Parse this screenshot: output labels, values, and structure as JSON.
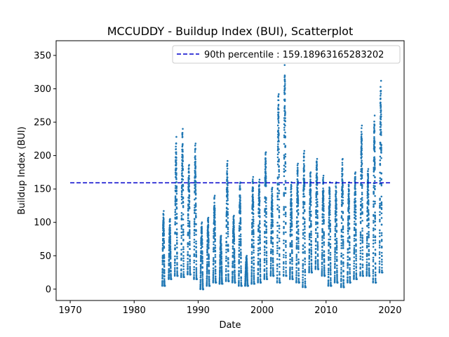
{
  "chart_data": {
    "type": "scatter",
    "title": "MCCUDDY - Buildup Index (BUI), Scatterplot",
    "xlabel": "Date",
    "ylabel": "Buildup Index (BUI)",
    "xlim": [
      1967.8,
      2022.2
    ],
    "ylim": [
      -17,
      372
    ],
    "xticks": [
      1970,
      1980,
      1990,
      2000,
      2010,
      2020
    ],
    "yticks": [
      0,
      50,
      100,
      150,
      200,
      250,
      300,
      350
    ],
    "series": [
      {
        "name": "",
        "color": "#1f77b4",
        "marker": "dot",
        "seasons": [
          {
            "year": 1984,
            "start": 1984.4,
            "end": 1984.8,
            "min": 5,
            "max": 117
          },
          {
            "year": 1985,
            "start": 1985.4,
            "end": 1985.8,
            "min": 15,
            "max": 105
          },
          {
            "year": 1986,
            "start": 1986.35,
            "end": 1986.8,
            "min": 20,
            "max": 228
          },
          {
            "year": 1987,
            "start": 1987.35,
            "end": 1987.8,
            "min": 18,
            "max": 240
          },
          {
            "year": 1988,
            "start": 1988.35,
            "end": 1988.8,
            "min": 22,
            "max": 186
          },
          {
            "year": 1989,
            "start": 1989.35,
            "end": 1989.8,
            "min": 15,
            "max": 218
          },
          {
            "year": 1990,
            "start": 1990.35,
            "end": 1990.8,
            "min": 0,
            "max": 100
          },
          {
            "year": 1991,
            "start": 1991.35,
            "end": 1991.8,
            "min": 5,
            "max": 107
          },
          {
            "year": 1992,
            "start": 1992.35,
            "end": 1992.8,
            "min": 10,
            "max": 140
          },
          {
            "year": 1993,
            "start": 1993.35,
            "end": 1993.8,
            "min": 8,
            "max": 80
          },
          {
            "year": 1994,
            "start": 1994.35,
            "end": 1994.8,
            "min": 12,
            "max": 192
          },
          {
            "year": 1995,
            "start": 1995.35,
            "end": 1995.8,
            "min": 10,
            "max": 110
          },
          {
            "year": 1996,
            "start": 1996.35,
            "end": 1996.8,
            "min": 5,
            "max": 160
          },
          {
            "year": 1997,
            "start": 1997.35,
            "end": 1997.8,
            "min": 5,
            "max": 50
          },
          {
            "year": 1998,
            "start": 1998.35,
            "end": 1998.8,
            "min": 8,
            "max": 168
          },
          {
            "year": 1999,
            "start": 1999.35,
            "end": 1999.8,
            "min": 10,
            "max": 164
          },
          {
            "year": 2000,
            "start": 2000.35,
            "end": 2000.8,
            "min": 15,
            "max": 205
          },
          {
            "year": 2001,
            "start": 2001.35,
            "end": 2001.8,
            "min": 20,
            "max": 152
          },
          {
            "year": 2002,
            "start": 2002.35,
            "end": 2002.8,
            "min": 10,
            "max": 292
          },
          {
            "year": 2003,
            "start": 2003.35,
            "end": 2003.8,
            "min": 20,
            "max": 340
          },
          {
            "year": 2004,
            "start": 2004.35,
            "end": 2004.8,
            "min": 15,
            "max": 160
          },
          {
            "year": 2005,
            "start": 2005.35,
            "end": 2005.8,
            "min": 10,
            "max": 188
          },
          {
            "year": 2006,
            "start": 2006.35,
            "end": 2006.8,
            "min": 3,
            "max": 207
          },
          {
            "year": 2007,
            "start": 2007.35,
            "end": 2007.8,
            "min": 25,
            "max": 175
          },
          {
            "year": 2008,
            "start": 2008.35,
            "end": 2008.8,
            "min": 30,
            "max": 195
          },
          {
            "year": 2009,
            "start": 2009.35,
            "end": 2009.8,
            "min": 20,
            "max": 170
          },
          {
            "year": 2010,
            "start": 2010.35,
            "end": 2010.8,
            "min": 5,
            "max": 160
          },
          {
            "year": 2011,
            "start": 2011.35,
            "end": 2011.8,
            "min": 10,
            "max": 160
          },
          {
            "year": 2012,
            "start": 2012.35,
            "end": 2012.8,
            "min": 3,
            "max": 195
          },
          {
            "year": 2013,
            "start": 2013.35,
            "end": 2013.8,
            "min": 10,
            "max": 160
          },
          {
            "year": 2014,
            "start": 2014.35,
            "end": 2014.8,
            "min": 15,
            "max": 175
          },
          {
            "year": 2015,
            "start": 2015.35,
            "end": 2015.8,
            "min": 20,
            "max": 245
          },
          {
            "year": 2016,
            "start": 2016.35,
            "end": 2016.8,
            "min": 20,
            "max": 180
          },
          {
            "year": 2017,
            "start": 2017.35,
            "end": 2017.8,
            "min": 10,
            "max": 260
          },
          {
            "year": 2018,
            "start": 2018.35,
            "end": 2018.8,
            "min": 25,
            "max": 312
          }
        ]
      }
    ],
    "reference_line": {
      "label": "90th percentile : 159.18963165283202",
      "value": 159.18963165283202,
      "x_range": [
        1970,
        2020
      ],
      "color": "#0000cc",
      "style": "dashed"
    },
    "legend": {
      "placement": "top-right"
    },
    "grid": false
  }
}
